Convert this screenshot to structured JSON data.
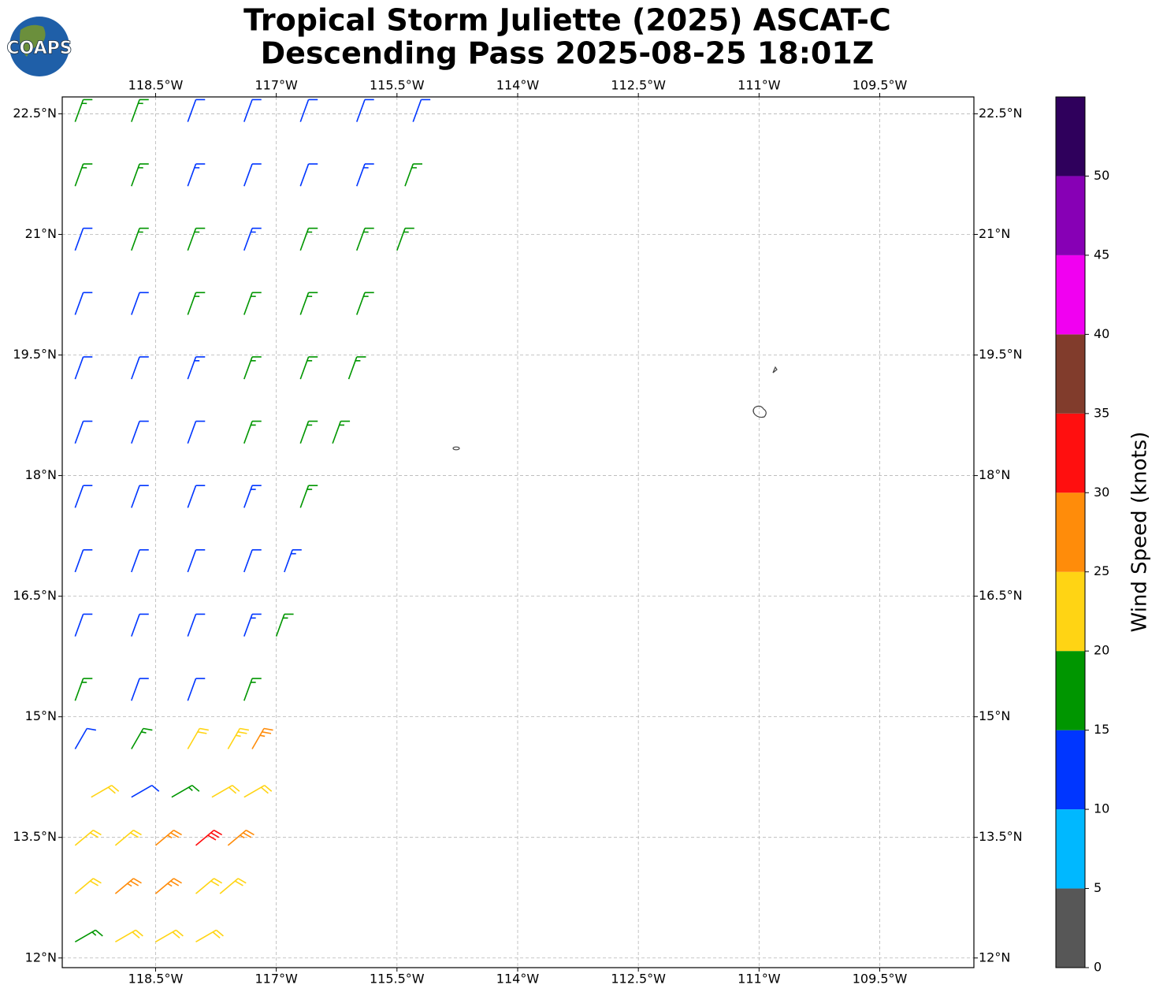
{
  "logo_text": "COAPS",
  "chart_data": {
    "type": "wind-barb-map",
    "title": "Tropical Storm Juliette (2025) ASCAT-C",
    "subtitle": "Descending Pass 2025-08-25 18:01Z",
    "xlim": [
      -119.66,
      -108.33
    ],
    "ylim": [
      11.88,
      22.71
    ],
    "xticks": [
      {
        "value": -118.5,
        "label": "118.5°W"
      },
      {
        "value": -117,
        "label": "117°W"
      },
      {
        "value": -115.5,
        "label": "115.5°W"
      },
      {
        "value": -114,
        "label": "114°W"
      },
      {
        "value": -112.5,
        "label": "112.5°W"
      },
      {
        "value": -111,
        "label": "111°W"
      },
      {
        "value": -109.5,
        "label": "109.5°W"
      }
    ],
    "yticks": [
      {
        "value": 12,
        "label": "12°N"
      },
      {
        "value": 13.5,
        "label": "13.5°N"
      },
      {
        "value": 15,
        "label": "15°N"
      },
      {
        "value": 16.5,
        "label": "16.5°N"
      },
      {
        "value": 18,
        "label": "18°N"
      },
      {
        "value": 19.5,
        "label": "19.5°N"
      },
      {
        "value": 21,
        "label": "21°N"
      },
      {
        "value": 22.5,
        "label": "22.5°N"
      }
    ],
    "grid": true,
    "colorbar": {
      "label": "Wind Speed (knots)",
      "bounds": [
        0,
        5,
        10,
        15,
        20,
        25,
        30,
        35,
        40,
        45,
        50,
        55
      ],
      "colors": [
        "#575757",
        "#00b8ff",
        "#0036ff",
        "#009600",
        "#ffd414",
        "#ff8c0a",
        "#ff0f0f",
        "#813c2c",
        "#f100f1",
        "#8700b5",
        "#2f005c"
      ],
      "ticks": [
        0,
        5,
        10,
        15,
        20,
        25,
        30,
        35,
        40,
        45,
        50
      ]
    },
    "rows": [
      {
        "lat": 22.4,
        "direction": 20,
        "lon": [
          -119.5,
          -118.8,
          -118.1,
          -117.4,
          -116.7,
          -116.0,
          -115.3
        ],
        "speed": [
          17,
          16,
          12,
          12,
          12,
          12,
          12
        ]
      },
      {
        "lat": 21.6,
        "direction": 20,
        "lon": [
          -119.5,
          -118.8,
          -118.1,
          -117.4,
          -116.7,
          -116.0,
          -115.4
        ],
        "speed": [
          17,
          16,
          13,
          12,
          12,
          14,
          17
        ]
      },
      {
        "lat": 20.8,
        "direction": 20,
        "lon": [
          -119.5,
          -118.8,
          -118.1,
          -117.4,
          -116.7,
          -116.0,
          -115.5
        ],
        "speed": [
          12,
          17,
          16,
          13,
          16,
          17,
          17
        ]
      },
      {
        "lat": 20.0,
        "direction": 20,
        "lon": [
          -119.5,
          -118.8,
          -118.1,
          -117.4,
          -116.7,
          -116.0
        ],
        "speed": [
          12,
          12,
          16,
          17,
          17,
          17
        ]
      },
      {
        "lat": 19.2,
        "direction": 20,
        "lon": [
          -119.5,
          -118.8,
          -118.1,
          -117.4,
          -116.7,
          -116.1
        ],
        "speed": [
          12,
          12,
          13,
          17,
          17,
          17
        ]
      },
      {
        "lat": 18.4,
        "direction": 20,
        "lon": [
          -119.5,
          -118.8,
          -118.1,
          -117.4,
          -116.7,
          -116.3
        ],
        "speed": [
          12,
          12,
          12,
          16,
          17,
          17
        ]
      },
      {
        "lat": 17.6,
        "direction": 20,
        "lon": [
          -119.5,
          -118.8,
          -118.1,
          -117.4,
          -116.7
        ],
        "speed": [
          12,
          12,
          12,
          13,
          16
        ]
      },
      {
        "lat": 16.8,
        "direction": 20,
        "lon": [
          -119.5,
          -118.8,
          -118.1,
          -117.4,
          -116.9
        ],
        "speed": [
          12,
          12,
          12,
          12,
          14
        ]
      },
      {
        "lat": 16.0,
        "direction": 20,
        "lon": [
          -119.5,
          -118.8,
          -118.1,
          -117.4,
          -117.0
        ],
        "speed": [
          12,
          12,
          12,
          13,
          17
        ]
      },
      {
        "lat": 15.2,
        "direction": 20,
        "lon": [
          -119.5,
          -118.8,
          -118.1,
          -117.4
        ],
        "speed": [
          16,
          12,
          12,
          16
        ]
      },
      {
        "lat": 14.6,
        "direction": 30,
        "lon": [
          -119.5,
          -118.8,
          -118.1,
          -117.6,
          -117.3
        ],
        "speed": [
          12,
          17,
          22,
          23,
          27
        ]
      },
      {
        "lat": 14.0,
        "direction": 60,
        "lon": [
          -119.3,
          -118.8,
          -118.3,
          -117.8,
          -117.4
        ],
        "speed": [
          22,
          12,
          17,
          22,
          22
        ]
      },
      {
        "lat": 13.4,
        "direction": 50,
        "lon": [
          -119.5,
          -119.0,
          -118.5,
          -118.0,
          -117.6
        ],
        "speed": [
          22,
          22,
          27,
          32,
          27
        ]
      },
      {
        "lat": 12.8,
        "direction": 50,
        "lon": [
          -119.5,
          -119.0,
          -118.5,
          -118.0,
          -117.7
        ],
        "speed": [
          22,
          27,
          27,
          22,
          22
        ]
      },
      {
        "lat": 12.2,
        "direction": 60,
        "lon": [
          -119.5,
          -119.0,
          -118.5,
          -118.0
        ],
        "speed": [
          17,
          22,
          22,
          22
        ]
      }
    ]
  }
}
